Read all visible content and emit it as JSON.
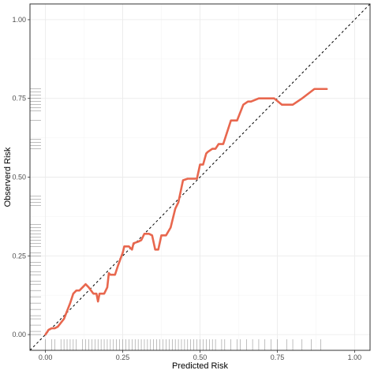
{
  "chart_data": {
    "type": "line",
    "xlabel": "Predicted Risk",
    "ylabel": "Observerd Risk",
    "xlim": [
      -0.05,
      1.05
    ],
    "ylim": [
      -0.05,
      1.05
    ],
    "x_ticks": [
      "0.00",
      "0.25",
      "0.50",
      "0.75",
      "1.00"
    ],
    "y_ticks": [
      "0.00",
      "0.25",
      "0.50",
      "0.75",
      "1.00"
    ],
    "x_tick_values": [
      0,
      0.25,
      0.5,
      0.75,
      1.0
    ],
    "y_tick_values": [
      0,
      0.25,
      0.5,
      0.75,
      1.0
    ],
    "grid": true,
    "reference_line": {
      "style": "dashed",
      "color": "#000000",
      "from": [
        -0.05,
        -0.05
      ],
      "to": [
        1.05,
        1.05
      ]
    },
    "series": [
      {
        "color": "#e8674e",
        "x": [
          0.0,
          0.01,
          0.02,
          0.03,
          0.04,
          0.06,
          0.08,
          0.09,
          0.1,
          0.11,
          0.12,
          0.13,
          0.14,
          0.155,
          0.165,
          0.17,
          0.175,
          0.19,
          0.2,
          0.205,
          0.21,
          0.225,
          0.235,
          0.25,
          0.255,
          0.27,
          0.28,
          0.285,
          0.3,
          0.31,
          0.32,
          0.335,
          0.345,
          0.355,
          0.365,
          0.375,
          0.39,
          0.405,
          0.41,
          0.42,
          0.43,
          0.445,
          0.46,
          0.485,
          0.49,
          0.5,
          0.51,
          0.52,
          0.525,
          0.54,
          0.55,
          0.56,
          0.575,
          0.6,
          0.61,
          0.62,
          0.64,
          0.655,
          0.665,
          0.69,
          0.71,
          0.74,
          0.765,
          0.8,
          0.83,
          0.87,
          0.9,
          0.91
        ],
        "y": [
          0.0,
          0.015,
          0.02,
          0.02,
          0.025,
          0.05,
          0.1,
          0.13,
          0.14,
          0.14,
          0.15,
          0.16,
          0.15,
          0.13,
          0.13,
          0.105,
          0.13,
          0.13,
          0.15,
          0.195,
          0.19,
          0.19,
          0.22,
          0.26,
          0.28,
          0.28,
          0.27,
          0.29,
          0.295,
          0.3,
          0.32,
          0.32,
          0.315,
          0.27,
          0.27,
          0.315,
          0.315,
          0.34,
          0.36,
          0.4,
          0.42,
          0.49,
          0.495,
          0.495,
          0.495,
          0.54,
          0.54,
          0.575,
          0.58,
          0.59,
          0.59,
          0.605,
          0.605,
          0.68,
          0.68,
          0.68,
          0.73,
          0.74,
          0.74,
          0.75,
          0.75,
          0.75,
          0.73,
          0.73,
          0.75,
          0.78,
          0.78,
          0.78
        ]
      }
    ],
    "rug_x": [
      0.0,
      0.02,
      0.03,
      0.05,
      0.06,
      0.07,
      0.08,
      0.09,
      0.1,
      0.12,
      0.13,
      0.14,
      0.15,
      0.16,
      0.17,
      0.18,
      0.19,
      0.2,
      0.21,
      0.22,
      0.23,
      0.24,
      0.25,
      0.26,
      0.27,
      0.28,
      0.29,
      0.3,
      0.31,
      0.32,
      0.33,
      0.34,
      0.35,
      0.36,
      0.37,
      0.38,
      0.39,
      0.4,
      0.41,
      0.42,
      0.43,
      0.44,
      0.45,
      0.46,
      0.47,
      0.48,
      0.49,
      0.5,
      0.51,
      0.52,
      0.53,
      0.54,
      0.55,
      0.57,
      0.58,
      0.6,
      0.62,
      0.63,
      0.65,
      0.67,
      0.69,
      0.71,
      0.73,
      0.75,
      0.78,
      0.8,
      0.83,
      0.86,
      0.89
    ],
    "rug_y": [
      0.0,
      0.01,
      0.03,
      0.05,
      0.06,
      0.08,
      0.1,
      0.12,
      0.14,
      0.16,
      0.17,
      0.19,
      0.2,
      0.22,
      0.23,
      0.25,
      0.26,
      0.28,
      0.29,
      0.3,
      0.31,
      0.32,
      0.33,
      0.34,
      0.35,
      0.41,
      0.42,
      0.43,
      0.44,
      0.59,
      0.6,
      0.61,
      0.62,
      0.68,
      0.71,
      0.72,
      0.73,
      0.74,
      0.75,
      0.76,
      0.77,
      0.78
    ]
  }
}
